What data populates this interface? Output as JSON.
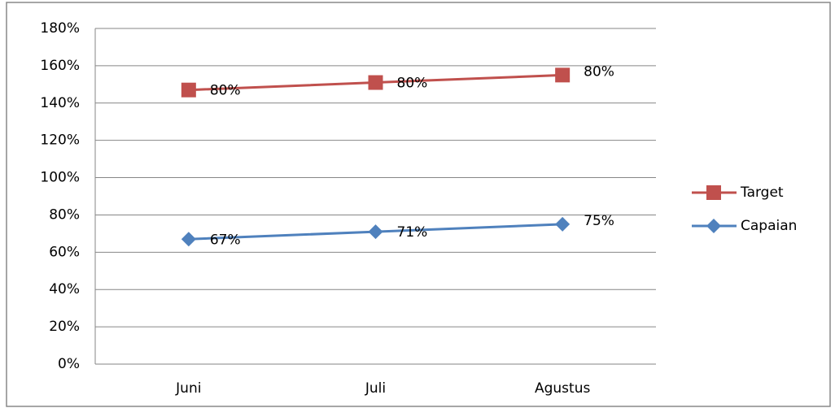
{
  "chart_data": {
    "type": "line",
    "stacked": true,
    "categories": [
      "Juni",
      "Juli",
      "Agustus"
    ],
    "series": [
      {
        "name": "Target",
        "color": "#c0504d",
        "marker": "square",
        "values": [
          80,
          80,
          80
        ],
        "value_labels": [
          "80%",
          "80%",
          "80%"
        ]
      },
      {
        "name": "Capaian",
        "color": "#4f81bd",
        "marker": "diamond",
        "values": [
          67,
          71,
          75
        ],
        "value_labels": [
          "67%",
          "71%",
          "75%"
        ]
      }
    ],
    "ylim": [
      0,
      180
    ],
    "yticks": [
      {
        "value": 0,
        "label": "0%"
      },
      {
        "value": 20,
        "label": "20%"
      },
      {
        "value": 40,
        "label": "40%"
      },
      {
        "value": 60,
        "label": "60%"
      },
      {
        "value": 80,
        "label": "80%"
      },
      {
        "value": 100,
        "label": "100%"
      },
      {
        "value": 120,
        "label": "120%"
      },
      {
        "value": 140,
        "label": "140%"
      },
      {
        "value": 160,
        "label": "160%"
      },
      {
        "value": 180,
        "label": "180%"
      }
    ],
    "grid": true,
    "legend": "right"
  }
}
